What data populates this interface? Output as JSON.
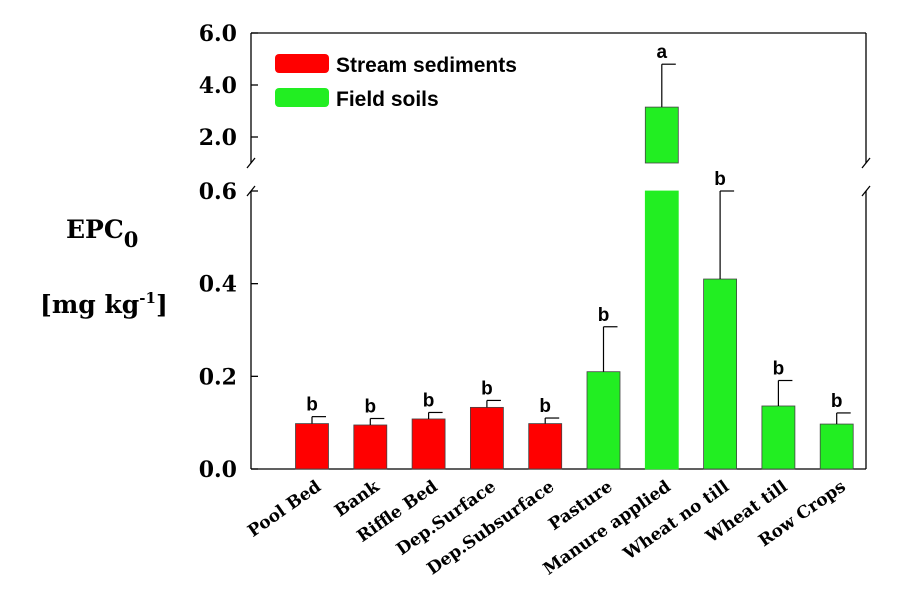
{
  "chart_data": {
    "type": "bar",
    "title": "",
    "xlabel": "",
    "ylabel": {
      "main": "EPC",
      "sub": "0",
      "unit_pre": "[mg kg",
      "unit_sup": "-1",
      "unit_post": "]"
    },
    "categories": [
      "Pool Bed",
      "Bank",
      "Riffle Bed",
      "Dep.Surface",
      "Dep.Subsurface",
      "Pasture",
      "Manure applied",
      "Wheat no till",
      "Wheat till",
      "Row Crops"
    ],
    "values": [
      0.098,
      0.095,
      0.108,
      0.133,
      0.098,
      0.21,
      3.15,
      0.41,
      0.136,
      0.097
    ],
    "errors": [
      0.015,
      0.014,
      0.014,
      0.015,
      0.012,
      0.097,
      1.65,
      0.19,
      0.055,
      0.024
    ],
    "groups": [
      "Stream sediments",
      "Stream sediments",
      "Stream sediments",
      "Stream sediments",
      "Stream sediments",
      "Field soils",
      "Field soils",
      "Field soils",
      "Field soils",
      "Field soils"
    ],
    "significance": [
      "b",
      "b",
      "b",
      "b",
      "b",
      "b",
      "a",
      "b",
      "b",
      "b"
    ],
    "legend": [
      {
        "name": "Stream sediments",
        "color": "#ff0000"
      },
      {
        "name": "Field soils",
        "color": "#22ee22"
      }
    ],
    "legend_position": "top-left",
    "axis_break": {
      "lower_ylim": [
        0.0,
        0.6
      ],
      "upper_ylim": [
        1.0,
        6.0
      ]
    },
    "yticks_lower": [
      "0.0",
      "0.2",
      "0.4",
      "0.6"
    ],
    "yticks_upper": [
      "2.0",
      "4.0",
      "6.0"
    ],
    "grid": false,
    "colors": {
      "sediments": "#ff0000",
      "soils": "#22ee22",
      "axis": "#000000"
    }
  }
}
